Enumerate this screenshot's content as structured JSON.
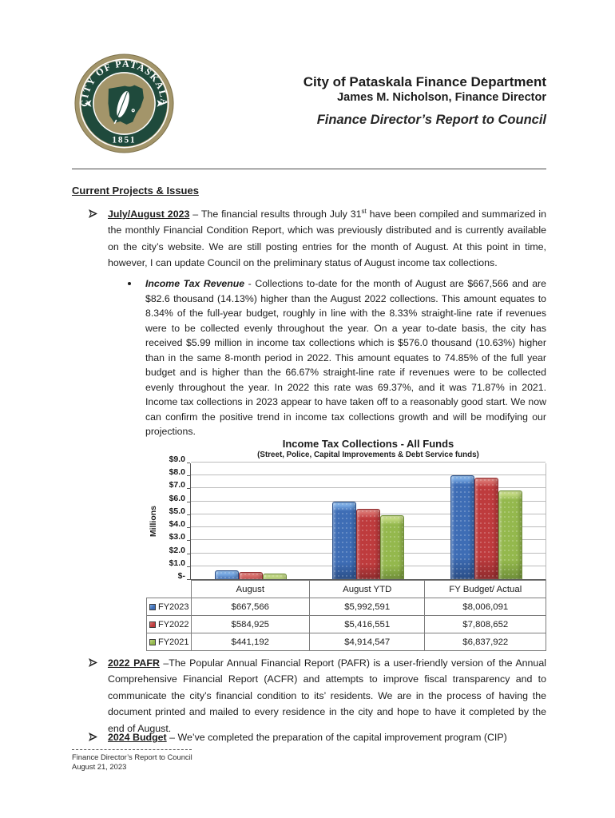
{
  "header": {
    "org": "City of Pataskala Finance Department",
    "director": "James M. Nicholson, Finance Director",
    "report_title": "Finance Director’s Report to Council",
    "seal": {
      "ring_text": "CITY OF PATASKALA",
      "year": "1851",
      "ring_color": "#a3956a",
      "band_color": "#1f4a3c"
    }
  },
  "section_heading": "Current Projects & Issues",
  "bullets": {
    "july_august": {
      "label": "July/August 2023",
      "dash": " – ",
      "body_pre": "The financial results through July 31",
      "sup": "st",
      "body_post": " have been compiled and summarized in the monthly Financial Condition Report, which was previously distributed and is currently available on the city’s website.  We are still posting entries for the month of August.  At this point in time, however, I can update Council on the preliminary status of August income tax collections."
    },
    "income_tax": {
      "label": "Income Tax Revenue",
      "dash": " - ",
      "body": "Collections to-date for the month of August are $667,566 and are $82.6 thousand (14.13%) higher than the August 2022 collections.  This amount equates to 8.34% of the full-year budget, roughly in line with the 8.33% straight-line rate if revenues were to be collected evenly throughout the year.  On a year to-date basis, the city has received $5.99 million in income tax collections which is $576.0 thousand (10.63%) higher than in the same 8-month period in 2022.  This amount equates to 74.85% of the full year budget and is higher than the 66.67% straight-line rate if revenues were to be collected evenly throughout the year.  In 2022 this rate was 69.37%, and it was 71.87% in 2021.  Income tax collections in 2023 appear to have taken off to a reasonably good start.  We now can confirm the positive trend in income tax collections growth and will be modifying our projections."
    },
    "pafr": {
      "label": "2022 PAFR",
      "dash": " –",
      "body": "The Popular Annual Financial Report (PAFR) is a user-friendly version of the Annual Comprehensive Financial Report (ACFR) and attempts to improve fiscal transparency and to communicate the city’s financial condition to its’ residents.  We are in the process of having the document printed and mailed to every residence in the city and hope to have it completed by the end of August."
    },
    "budget": {
      "label": "2024 Budget",
      "dash": " – ",
      "body": "We’ve completed the preparation of the capital improvement program (CIP)"
    }
  },
  "chart_data": {
    "type": "bar",
    "title": "Income Tax Collections - All Funds",
    "subtitle": "(Street, Police, Capital Improvements & Debt Service funds)",
    "ylabel": "Millions",
    "ylim": [
      0,
      9
    ],
    "ytick_labels": [
      "$-",
      "$1.0",
      "$2.0",
      "$3.0",
      "$4.0",
      "$5.0",
      "$6.0",
      "$7.0",
      "$8.0",
      "$9.0"
    ],
    "grid": true,
    "legend_position": "table-left",
    "categories": [
      "August",
      "August YTD",
      "FY Budget/ Actual"
    ],
    "series": [
      {
        "name": "FY2023",
        "color": "#3e6db5",
        "color_light": "#7fb0e8",
        "color_dark": "#2a4e87",
        "values_millions": [
          0.667566,
          5.992591,
          8.006091
        ],
        "labels": [
          "$667,566",
          "$5,992,591",
          "$8,006,091"
        ]
      },
      {
        "name": "FY2022",
        "color": "#be3b3d",
        "color_light": "#dc7672",
        "color_dark": "#8f2b2d",
        "values_millions": [
          0.584925,
          5.416551,
          7.808652
        ],
        "labels": [
          "$584,925",
          "$5,416,551",
          "$7,808,652"
        ]
      },
      {
        "name": "FY2021",
        "color": "#94b84d",
        "color_light": "#c6dc85",
        "color_dark": "#6f8f38",
        "values_millions": [
          0.441192,
          4.914547,
          6.837922
        ],
        "labels": [
          "$441,192",
          "$4,914,547",
          "$6,837,922"
        ]
      }
    ]
  },
  "footer": {
    "line1": "Finance Director’s Report to Council",
    "line2": "August 21, 2023"
  }
}
